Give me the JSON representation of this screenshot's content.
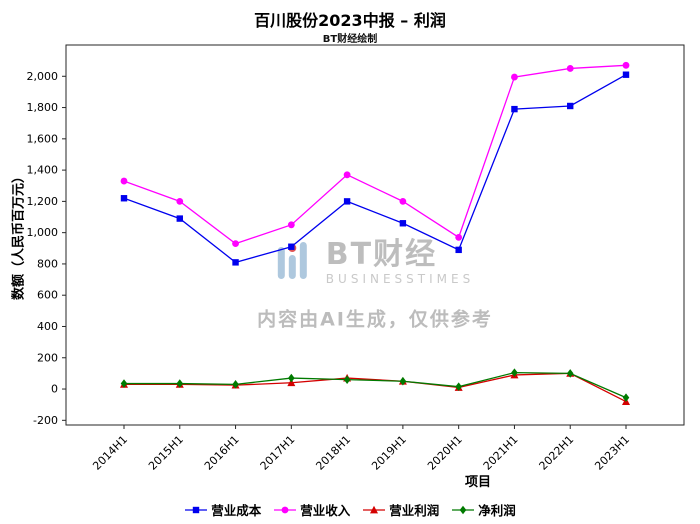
{
  "title": "百川股份2023中报 – 利润",
  "subtitle": "BT财经绘制",
  "watermark": {
    "brand": "BT财经",
    "brand_sub": "BUSINESSTIMES",
    "disclaimer": "内容由AI生成，仅供参考"
  },
  "chart_data": {
    "type": "line",
    "title": "百川股份2023中报 – 利润",
    "x": [
      "2014H1",
      "2015H1",
      "2016H1",
      "2017H1",
      "2018H1",
      "2019H1",
      "2020H1",
      "2021H1",
      "2022H1",
      "2023H1"
    ],
    "series": [
      {
        "name": "营业成本",
        "color": "#0000ee",
        "marker": "square",
        "values": [
          1220,
          1090,
          810,
          910,
          1200,
          1060,
          890,
          1790,
          1810,
          2010
        ]
      },
      {
        "name": "营业收入",
        "color": "#ff00ff",
        "marker": "circle",
        "values": [
          1330,
          1200,
          930,
          1050,
          1370,
          1200,
          970,
          1995,
          2050,
          2070
        ]
      },
      {
        "name": "营业利润",
        "color": "#d40000",
        "marker": "triangle",
        "values": [
          30,
          30,
          25,
          40,
          70,
          50,
          10,
          90,
          100,
          -80
        ]
      },
      {
        "name": "净利润",
        "color": "#007a00",
        "marker": "diamond",
        "values": [
          35,
          35,
          30,
          70,
          60,
          50,
          15,
          105,
          100,
          -55
        ]
      }
    ],
    "xlabel": "项目",
    "ylabel": "数额（人民币百万元）",
    "ylim": [
      -230,
      2200
    ],
    "yticks": [
      -200,
      0,
      200,
      400,
      600,
      800,
      1000,
      1200,
      1400,
      1600,
      1800,
      2000
    ],
    "grid": false,
    "legend_position": "bottom"
  }
}
